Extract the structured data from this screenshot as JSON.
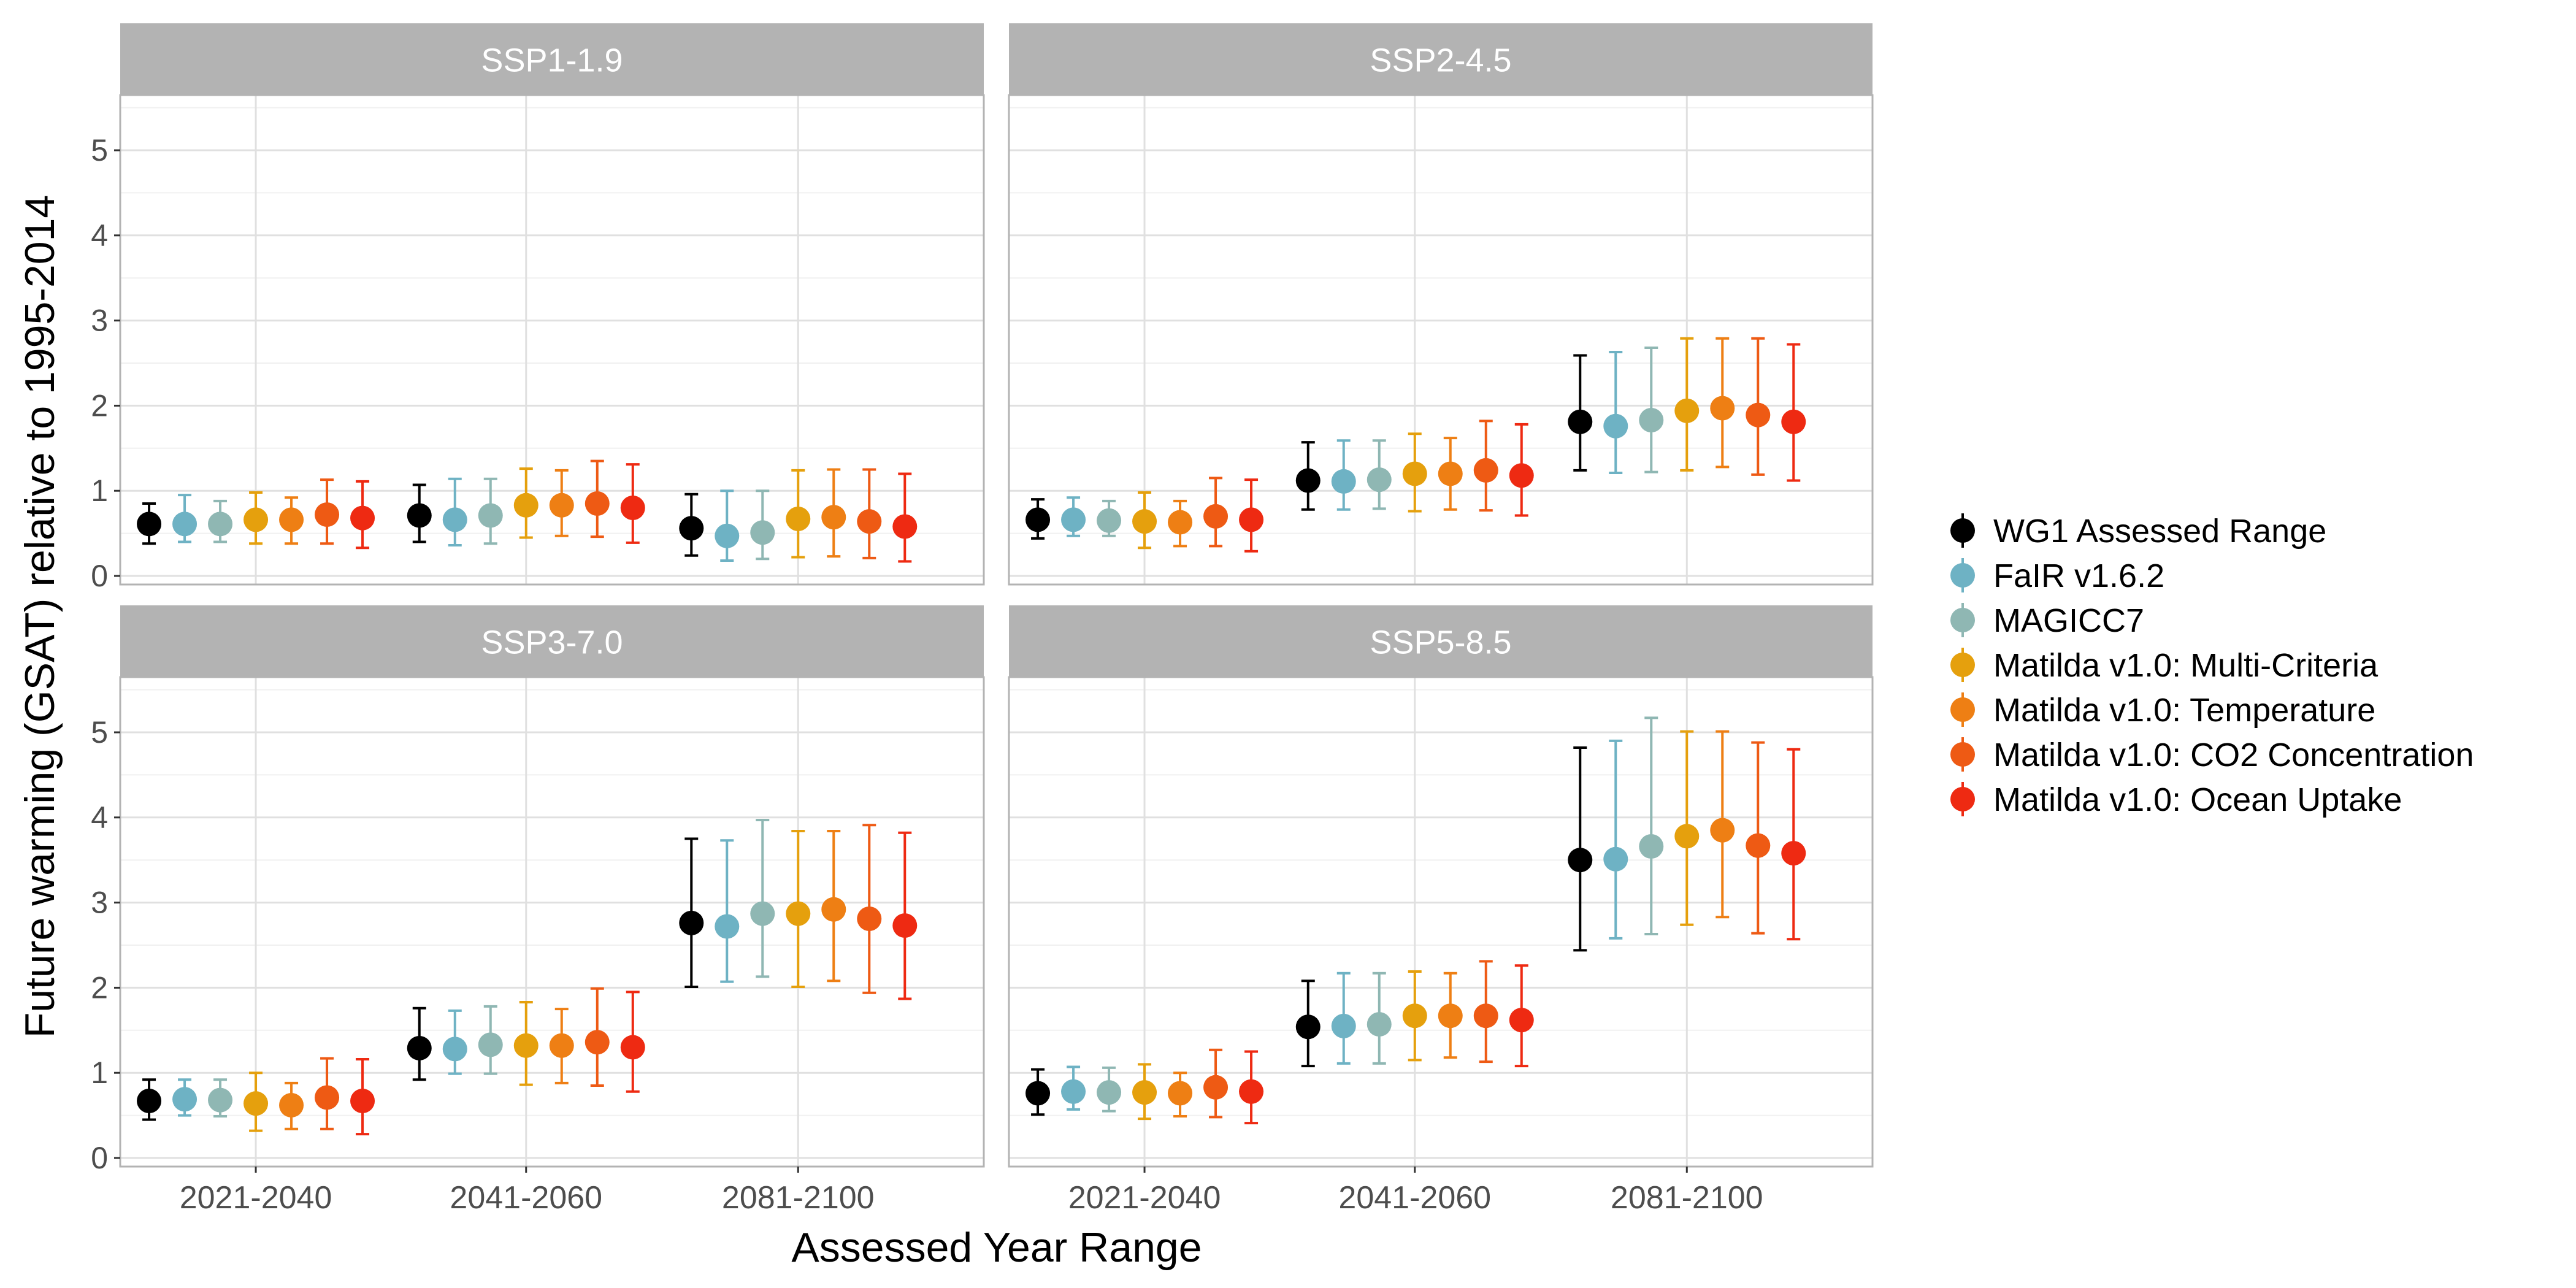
{
  "chart_data": {
    "type": "scatter",
    "variant": "point-range faceted",
    "xlabel": "Assessed Year Range",
    "ylabel": "Future warming (GSAT) relative to 1995-2014",
    "categories": [
      "2021-2040",
      "2041-2060",
      "2081-2100"
    ],
    "ylim": [
      0,
      5
    ],
    "yticks": [
      0,
      1,
      2,
      3,
      4,
      5
    ],
    "grid": true,
    "legend_position": "right",
    "series": [
      {
        "name": "WG1 Assessed Range",
        "color": "#000000"
      },
      {
        "name": "FaIR v1.6.2",
        "color": "#6EB2C4"
      },
      {
        "name": "MAGICC7",
        "color": "#8FB7B3"
      },
      {
        "name": "Matilda v1.0: Multi-Criteria",
        "color": "#E5A00D"
      },
      {
        "name": "Matilda v1.0: Temperature",
        "color": "#EE7F14"
      },
      {
        "name": "Matilda v1.0: CO2 Concentration",
        "color": "#EE5A14"
      },
      {
        "name": "Matilda v1.0: Ocean Uptake",
        "color": "#EE2A12"
      }
    ],
    "panels": [
      {
        "title": "SSP1-1.9",
        "values": [
          [
            [
              0.61,
              0.38,
              0.85
            ],
            [
              0.61,
              0.4,
              0.95
            ],
            [
              0.61,
              0.4,
              0.88
            ],
            [
              0.66,
              0.38,
              0.98
            ],
            [
              0.66,
              0.38,
              0.92
            ],
            [
              0.72,
              0.38,
              1.13
            ],
            [
              0.68,
              0.33,
              1.11
            ]
          ],
          [
            [
              0.71,
              0.4,
              1.07
            ],
            [
              0.66,
              0.36,
              1.14
            ],
            [
              0.71,
              0.38,
              1.14
            ],
            [
              0.83,
              0.45,
              1.26
            ],
            [
              0.83,
              0.47,
              1.24
            ],
            [
              0.85,
              0.46,
              1.35
            ],
            [
              0.8,
              0.39,
              1.31
            ]
          ],
          [
            [
              0.56,
              0.24,
              0.96
            ],
            [
              0.47,
              0.18,
              1.0
            ],
            [
              0.51,
              0.2,
              1.0
            ],
            [
              0.67,
              0.22,
              1.24
            ],
            [
              0.69,
              0.23,
              1.25
            ],
            [
              0.64,
              0.21,
              1.25
            ],
            [
              0.58,
              0.17,
              1.2
            ]
          ]
        ]
      },
      {
        "title": "SSP2-4.5",
        "values": [
          [
            [
              0.66,
              0.44,
              0.9
            ],
            [
              0.66,
              0.47,
              0.92
            ],
            [
              0.65,
              0.47,
              0.88
            ],
            [
              0.64,
              0.33,
              0.98
            ],
            [
              0.63,
              0.35,
              0.88
            ],
            [
              0.7,
              0.35,
              1.15
            ],
            [
              0.66,
              0.29,
              1.13
            ]
          ],
          [
            [
              1.12,
              0.78,
              1.57
            ],
            [
              1.11,
              0.78,
              1.59
            ],
            [
              1.13,
              0.79,
              1.59
            ],
            [
              1.2,
              0.76,
              1.67
            ],
            [
              1.2,
              0.78,
              1.62
            ],
            [
              1.24,
              0.77,
              1.82
            ],
            [
              1.18,
              0.71,
              1.78
            ]
          ],
          [
            [
              1.81,
              1.24,
              2.59
            ],
            [
              1.76,
              1.21,
              2.63
            ],
            [
              1.83,
              1.22,
              2.68
            ],
            [
              1.94,
              1.24,
              2.79
            ],
            [
              1.97,
              1.28,
              2.79
            ],
            [
              1.89,
              1.19,
              2.79
            ],
            [
              1.81,
              1.12,
              2.72
            ]
          ]
        ]
      },
      {
        "title": "SSP3-7.0",
        "values": [
          [
            [
              0.67,
              0.45,
              0.92
            ],
            [
              0.69,
              0.5,
              0.92
            ],
            [
              0.68,
              0.49,
              0.92
            ],
            [
              0.64,
              0.32,
              1.0
            ],
            [
              0.62,
              0.34,
              0.88
            ],
            [
              0.71,
              0.34,
              1.17
            ],
            [
              0.67,
              0.28,
              1.16
            ]
          ],
          [
            [
              1.29,
              0.92,
              1.76
            ],
            [
              1.28,
              0.99,
              1.73
            ],
            [
              1.33,
              0.99,
              1.78
            ],
            [
              1.32,
              0.86,
              1.83
            ],
            [
              1.32,
              0.88,
              1.75
            ],
            [
              1.36,
              0.85,
              1.99
            ],
            [
              1.3,
              0.78,
              1.95
            ]
          ],
          [
            [
              2.76,
              2.01,
              3.75
            ],
            [
              2.72,
              2.07,
              3.73
            ],
            [
              2.87,
              2.13,
              3.97
            ],
            [
              2.87,
              2.01,
              3.84
            ],
            [
              2.92,
              2.08,
              3.84
            ],
            [
              2.81,
              1.94,
              3.91
            ],
            [
              2.73,
              1.87,
              3.82
            ]
          ]
        ]
      },
      {
        "title": "SSP5-8.5",
        "values": [
          [
            [
              0.76,
              0.51,
              1.04
            ],
            [
              0.78,
              0.57,
              1.07
            ],
            [
              0.77,
              0.55,
              1.06
            ],
            [
              0.77,
              0.46,
              1.1
            ],
            [
              0.76,
              0.49,
              1.0
            ],
            [
              0.83,
              0.48,
              1.27
            ],
            [
              0.78,
              0.41,
              1.25
            ]
          ],
          [
            [
              1.54,
              1.08,
              2.08
            ],
            [
              1.55,
              1.11,
              2.17
            ],
            [
              1.57,
              1.11,
              2.17
            ],
            [
              1.67,
              1.15,
              2.19
            ],
            [
              1.67,
              1.18,
              2.17
            ],
            [
              1.67,
              1.13,
              2.31
            ],
            [
              1.62,
              1.08,
              2.26
            ]
          ],
          [
            [
              3.5,
              2.44,
              4.82
            ],
            [
              3.51,
              2.58,
              4.9
            ],
            [
              3.66,
              2.63,
              5.17
            ],
            [
              3.78,
              2.74,
              5.01
            ],
            [
              3.85,
              2.83,
              5.01
            ],
            [
              3.67,
              2.64,
              4.88
            ],
            [
              3.58,
              2.57,
              4.8
            ]
          ]
        ]
      }
    ]
  }
}
